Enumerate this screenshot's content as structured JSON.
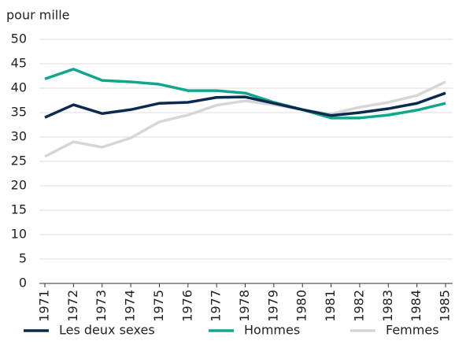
{
  "chart_data": {
    "type": "line",
    "y_label": "pour mille",
    "categories": [
      "1971",
      "1972",
      "1973",
      "1974",
      "1975",
      "1976",
      "1977",
      "1978",
      "1979",
      "1980",
      "1981",
      "1982",
      "1983",
      "1984",
      "1985"
    ],
    "series": [
      {
        "name": "Les deux sexes",
        "color": "#0b2a4f",
        "values": [
          34,
          36.6,
          34.8,
          35.6,
          36.9,
          37.1,
          38.1,
          38.2,
          36.9,
          35.6,
          34.4,
          35,
          35.8,
          36.9,
          39
        ]
      },
      {
        "name": "Hommes",
        "color": "#12a68c",
        "values": [
          41.9,
          43.9,
          41.6,
          41.3,
          40.8,
          39.5,
          39.5,
          39,
          37.1,
          35.6,
          33.9,
          33.9,
          34.5,
          35.5,
          36.9
        ]
      },
      {
        "name": "Femmes",
        "color": "#d6d6d6",
        "values": [
          26,
          29,
          27.9,
          29.8,
          33.1,
          34.5,
          36.5,
          37.4,
          36.6,
          35.6,
          34.7,
          36.1,
          37.1,
          38.5,
          41.3
        ]
      }
    ],
    "ylim": [
      0,
      50
    ],
    "yticks": [
      0,
      5,
      10,
      15,
      20,
      25,
      30,
      35,
      40,
      45,
      50
    ],
    "grid": true
  }
}
